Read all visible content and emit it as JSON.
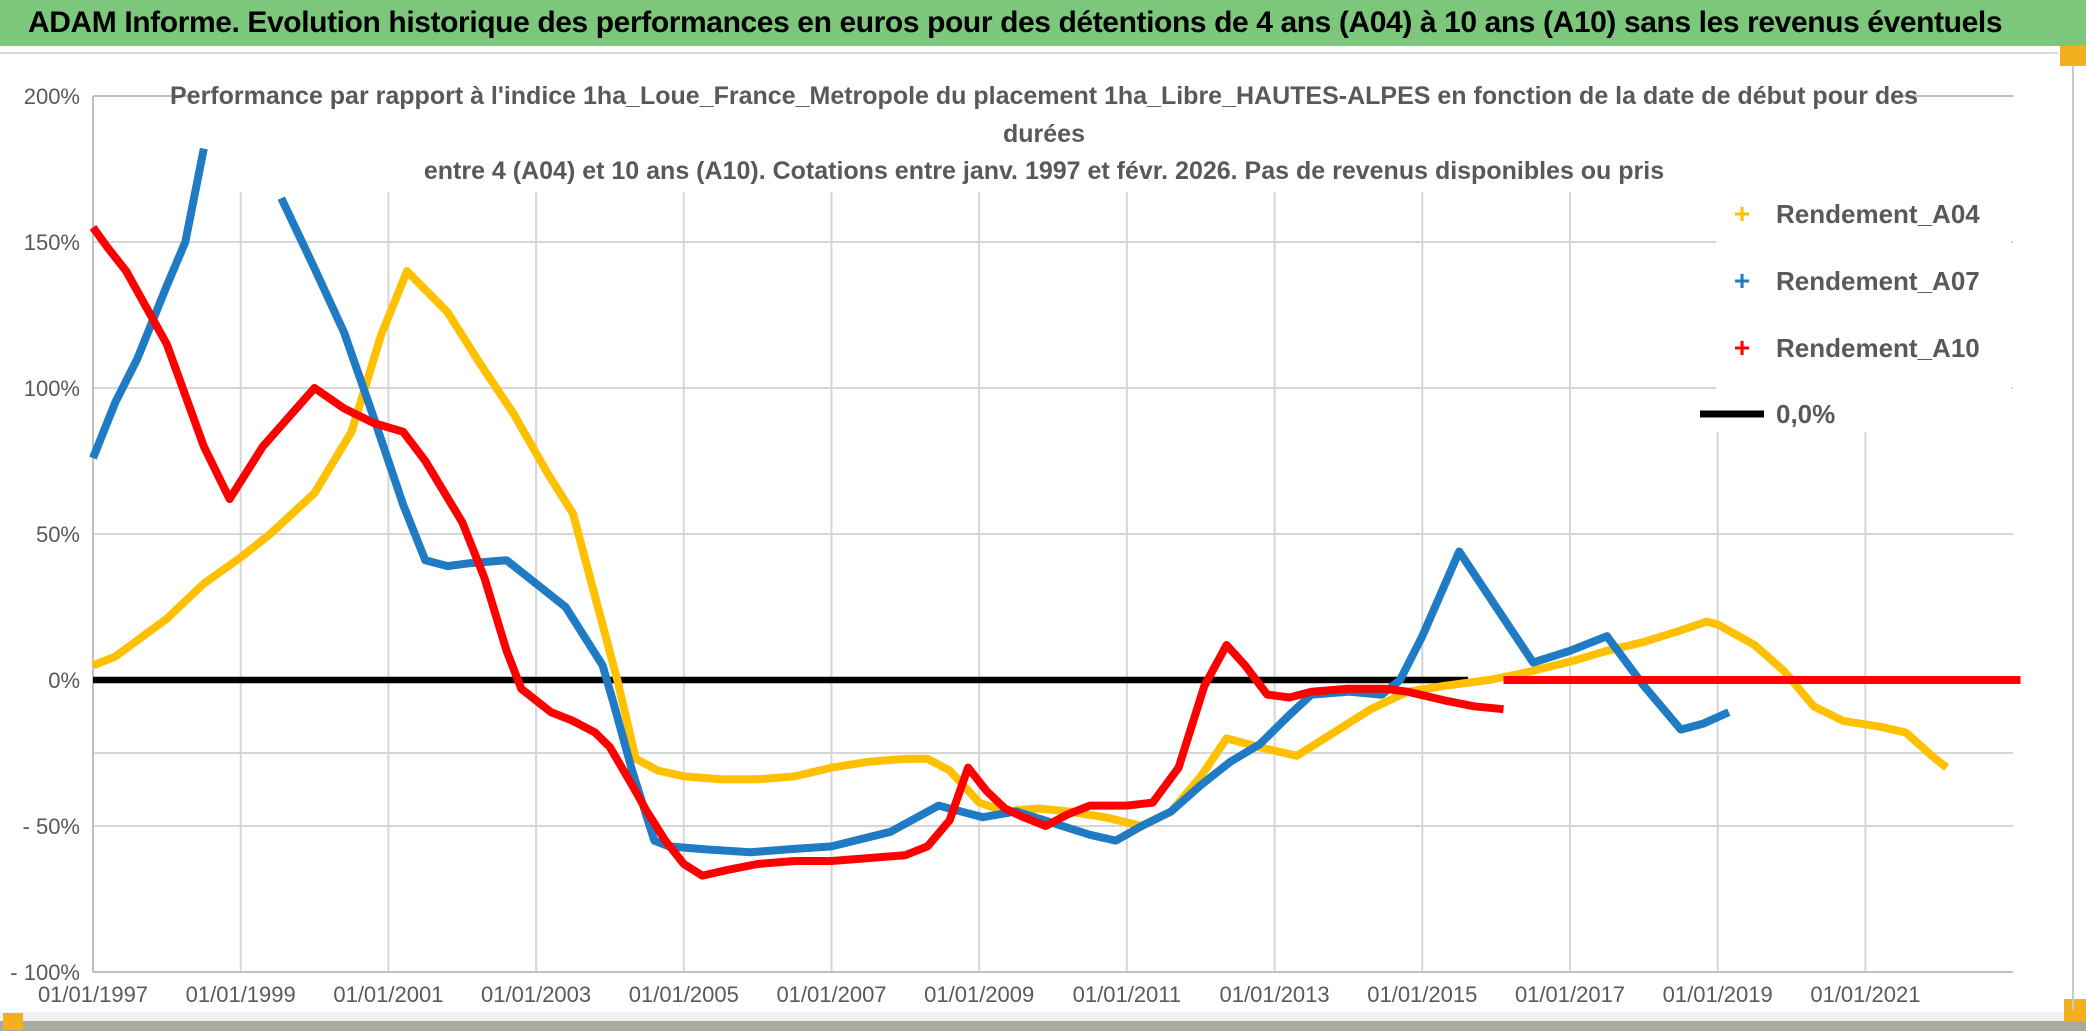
{
  "banner": {
    "text": "ADAM Informe. Evolution historique des performances en euros pour des détentions de 4 ans (A04) à 10 ans (A10) sans les revenus éventuels",
    "bg_color": "#7CC77C",
    "underline_color": "#D9D9D9"
  },
  "window": {
    "accent_color": "#F2B01E",
    "bottom_strip_color": "#A9AC9C",
    "edge_line_color": "#C9C9C9"
  },
  "chart_data": {
    "type": "line",
    "title_lines": [
      "Performance par rapport à l'indice 1ha_Loue_France_Metropole  du placement 1ha_Libre_HAUTES-ALPES en fonction de la date de début pour des",
      "durées",
      "entre 4 (A04) et 10 ans (A10). Cotations entre janv. 1997 et févr. 2026. Pas de revenus disponibles ou pris"
    ],
    "title_color": "#595959",
    "axis_text_color": "#595959",
    "gridline_color": "#D6D6D6",
    "frame_color": "#C0C0C0",
    "xlabel": "",
    "ylabel": "",
    "ylim": [
      -100,
      200
    ],
    "x_start_year": 1997,
    "x_end_year": 2023,
    "x_gridline_years": [
      1999,
      2001,
      2003,
      2005,
      2007,
      2009,
      2011,
      2013,
      2015,
      2017,
      2019,
      2021
    ],
    "x_tick_labels": [
      {
        "year": 1997,
        "label": "01/01/1997"
      },
      {
        "year": 1999,
        "label": "01/01/1999"
      },
      {
        "year": 2001,
        "label": "01/01/2001"
      },
      {
        "year": 2003,
        "label": "01/01/2003"
      },
      {
        "year": 2005,
        "label": "01/01/2005"
      },
      {
        "year": 2007,
        "label": "01/01/2007"
      },
      {
        "year": 2009,
        "label": "01/01/2009"
      },
      {
        "year": 2011,
        "label": "01/01/2011"
      },
      {
        "year": 2013,
        "label": "01/01/2013"
      },
      {
        "year": 2015,
        "label": "01/01/2015"
      },
      {
        "year": 2017,
        "label": "01/01/2017"
      },
      {
        "year": 2019,
        "label": "01/01/2019"
      },
      {
        "year": 2021,
        "label": "01/01/2021"
      }
    ],
    "y_tick_labels": [
      {
        "value": 200,
        "label": "200%"
      },
      {
        "value": 150,
        "label": "150%"
      },
      {
        "value": 100,
        "label": "100%"
      },
      {
        "value": 50,
        "label": "50%"
      },
      {
        "value": 0,
        "label": "0%"
      },
      {
        "value": -50,
        "label": "- 50%"
      },
      {
        "value": -100,
        "label": "- 100%"
      }
    ],
    "y_minor_gridlines": [
      150,
      100,
      50,
      -25,
      -50
    ],
    "legend": [
      {
        "label": "Rendement_A04",
        "color": "#FFC000",
        "marker": "plus"
      },
      {
        "label": "Rendement_A07",
        "color": "#1F7BC4",
        "marker": "plus"
      },
      {
        "label": "Rendement_A10",
        "color": "#FF0000",
        "marker": "plus"
      },
      {
        "label": "0,0%",
        "color": "#000000",
        "marker": "line"
      }
    ],
    "series": [
      {
        "name": "Zero_reference",
        "color": "#000000",
        "width": 6.5,
        "segments": [
          [
            [
              1997.0,
              0
            ],
            [
              2015.62,
              0
            ]
          ]
        ]
      },
      {
        "name": "Rendement_A04",
        "color": "#FFC000",
        "width": 8,
        "segments": [
          [
            [
              1997.0,
              5
            ],
            [
              1997.3,
              8
            ],
            [
              1998.0,
              21
            ],
            [
              1998.5,
              33
            ],
            [
              1999.0,
              42
            ],
            [
              1999.4,
              50
            ],
            [
              2000.0,
              64
            ],
            [
              2000.5,
              85
            ],
            [
              2000.9,
              118
            ],
            [
              2001.25,
              140
            ],
            [
              2001.8,
              126
            ],
            [
              2002.25,
              108
            ],
            [
              2002.7,
              91
            ],
            [
              2003.15,
              71
            ],
            [
              2003.5,
              57
            ],
            [
              2004.1,
              0
            ],
            [
              2004.35,
              -27
            ],
            [
              2004.65,
              -31
            ],
            [
              2005.0,
              -33
            ],
            [
              2005.5,
              -34
            ],
            [
              2006.0,
              -34
            ],
            [
              2006.5,
              -33
            ],
            [
              2007.0,
              -30
            ],
            [
              2007.5,
              -28
            ],
            [
              2008.0,
              -27
            ],
            [
              2008.3,
              -27
            ],
            [
              2008.6,
              -31
            ],
            [
              2009.0,
              -42
            ],
            [
              2009.35,
              -45
            ],
            [
              2009.8,
              -44
            ],
            [
              2010.2,
              -45
            ],
            [
              2010.7,
              -47
            ],
            [
              2011.2,
              -50
            ],
            [
              2011.6,
              -45
            ],
            [
              2012.0,
              -33
            ],
            [
              2012.35,
              -20
            ],
            [
              2012.8,
              -23
            ],
            [
              2013.3,
              -26
            ],
            [
              2013.8,
              -18
            ],
            [
              2014.3,
              -10
            ],
            [
              2014.8,
              -4
            ],
            [
              2015.3,
              -2
            ],
            [
              2015.9,
              0
            ],
            [
              2016.3,
              2
            ],
            [
              2016.8,
              5
            ],
            [
              2017.1,
              7
            ],
            [
              2017.5,
              10
            ],
            [
              2018.0,
              13
            ],
            [
              2018.5,
              17
            ],
            [
              2018.85,
              20
            ],
            [
              2019.0,
              19
            ],
            [
              2019.5,
              12
            ],
            [
              2019.9,
              3
            ],
            [
              2020.3,
              -9
            ],
            [
              2020.7,
              -14
            ],
            [
              2021.2,
              -16
            ],
            [
              2021.55,
              -18
            ],
            [
              2021.9,
              -26
            ],
            [
              2022.1,
              -30
            ]
          ]
        ]
      },
      {
        "name": "Rendement_A07",
        "color": "#1F7BC4",
        "width": 8,
        "segments": [
          [
            [
              1997.0,
              76
            ],
            [
              1997.3,
              95
            ],
            [
              1997.6,
              110
            ],
            [
              1998.0,
              135
            ],
            [
              1998.25,
              150
            ],
            [
              1998.5,
              182
            ]
          ],
          [
            [
              1999.55,
              165
            ],
            [
              2000.0,
              141
            ],
            [
              2000.4,
              119
            ],
            [
              2000.8,
              90
            ],
            [
              2001.2,
              60
            ],
            [
              2001.5,
              41
            ],
            [
              2001.8,
              39
            ],
            [
              2002.1,
              40
            ],
            [
              2002.6,
              41
            ],
            [
              2003.0,
              33
            ],
            [
              2003.4,
              25
            ],
            [
              2003.9,
              5
            ],
            [
              2004.05,
              -8
            ],
            [
              2004.3,
              -31
            ],
            [
              2004.6,
              -55
            ],
            [
              2004.8,
              -57
            ],
            [
              2005.3,
              -58
            ],
            [
              2005.9,
              -59
            ],
            [
              2006.4,
              -58
            ],
            [
              2007.0,
              -57
            ],
            [
              2007.8,
              -52
            ],
            [
              2008.45,
              -43
            ],
            [
              2009.05,
              -47
            ],
            [
              2009.5,
              -45
            ],
            [
              2010.0,
              -49
            ],
            [
              2010.5,
              -53
            ],
            [
              2010.85,
              -55
            ],
            [
              2011.2,
              -50
            ],
            [
              2011.6,
              -45
            ],
            [
              2012.0,
              -36
            ],
            [
              2012.4,
              -28
            ],
            [
              2012.8,
              -22
            ],
            [
              2013.2,
              -12
            ],
            [
              2013.5,
              -5
            ],
            [
              2014.0,
              -4
            ],
            [
              2014.45,
              -5
            ],
            [
              2014.7,
              0
            ],
            [
              2015.0,
              15
            ],
            [
              2015.5,
              44
            ],
            [
              2016.0,
              25
            ],
            [
              2016.5,
              6
            ],
            [
              2017.0,
              10
            ],
            [
              2017.5,
              15
            ],
            [
              2018.0,
              -2
            ],
            [
              2018.5,
              -17
            ],
            [
              2018.8,
              -15
            ],
            [
              2019.15,
              -11
            ]
          ]
        ]
      },
      {
        "name": "Rendement_A10",
        "color": "#FF0000",
        "width": 8,
        "segments": [
          [
            [
              1997.0,
              155
            ],
            [
              1997.2,
              148
            ],
            [
              1997.45,
              140
            ],
            [
              1998.0,
              115
            ],
            [
              1998.5,
              80
            ],
            [
              1998.85,
              62
            ],
            [
              1999.3,
              80
            ],
            [
              2000.0,
              100
            ],
            [
              2000.4,
              93
            ],
            [
              2000.8,
              88
            ],
            [
              2001.2,
              85
            ],
            [
              2001.5,
              75
            ],
            [
              2002.0,
              54
            ],
            [
              2002.3,
              35
            ],
            [
              2002.6,
              10
            ],
            [
              2002.8,
              -3
            ],
            [
              2003.2,
              -11
            ],
            [
              2003.5,
              -14
            ],
            [
              2003.8,
              -18
            ],
            [
              2004.0,
              -23
            ],
            [
              2004.3,
              -36
            ],
            [
              2004.5,
              -45
            ],
            [
              2004.75,
              -55
            ],
            [
              2005.0,
              -63
            ],
            [
              2005.25,
              -67
            ],
            [
              2005.6,
              -65
            ],
            [
              2006.0,
              -63
            ],
            [
              2006.5,
              -62
            ],
            [
              2007.0,
              -62
            ],
            [
              2007.5,
              -61
            ],
            [
              2008.0,
              -60
            ],
            [
              2008.3,
              -57
            ],
            [
              2008.6,
              -48
            ],
            [
              2008.85,
              -30
            ],
            [
              2009.1,
              -38
            ],
            [
              2009.35,
              -44
            ],
            [
              2009.6,
              -47
            ],
            [
              2009.9,
              -50
            ],
            [
              2010.2,
              -46
            ],
            [
              2010.5,
              -43
            ],
            [
              2011.0,
              -43
            ],
            [
              2011.35,
              -42
            ],
            [
              2011.7,
              -30
            ],
            [
              2012.05,
              -2
            ],
            [
              2012.35,
              12
            ],
            [
              2012.6,
              5
            ],
            [
              2012.9,
              -5
            ],
            [
              2013.2,
              -6
            ],
            [
              2013.5,
              -4
            ],
            [
              2014.0,
              -3
            ],
            [
              2014.5,
              -3
            ],
            [
              2014.8,
              -4
            ],
            [
              2015.3,
              -7
            ],
            [
              2015.7,
              -9
            ],
            [
              2016.1,
              -10
            ]
          ],
          [
            [
              2016.1,
              0
            ],
            [
              2023.1,
              0
            ]
          ]
        ]
      }
    ]
  }
}
